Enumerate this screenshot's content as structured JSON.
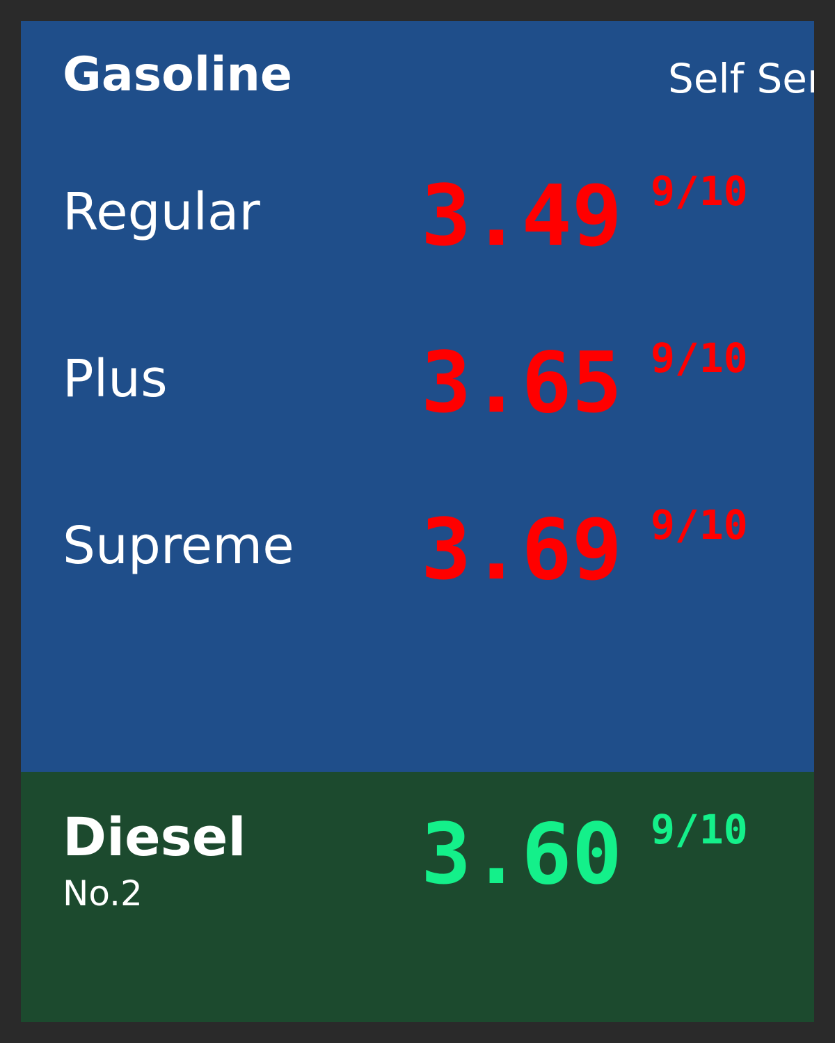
{
  "gasoline": {
    "title": "Gasoline",
    "service": "Self Serve",
    "grades": [
      {
        "name": "Regular",
        "price": "3.49",
        "fraction": "9/10"
      },
      {
        "name": "Plus",
        "price": "3.65",
        "fraction": "9/10"
      },
      {
        "name": "Supreme",
        "price": "3.69",
        "fraction": "9/10"
      }
    ]
  },
  "diesel": {
    "title": "Diesel",
    "subtitle": "No.2",
    "price": "3.60",
    "fraction": "9/10"
  },
  "colors": {
    "gas_panel": "#1f4e8a",
    "diesel_panel": "#1c4a2e",
    "gas_price": "#ff0000",
    "diesel_price": "#14f08a",
    "frame": "#2a2a2a"
  }
}
